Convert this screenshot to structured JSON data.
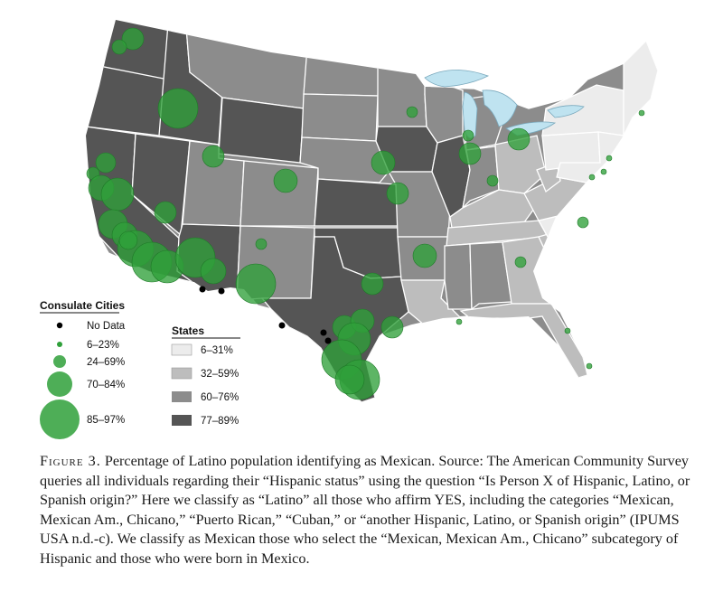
{
  "colors": {
    "water": "#bfe3f0",
    "state_6_31": "#ececec",
    "state_32_59": "#bdbdbd",
    "state_60_76": "#8c8c8c",
    "state_77_89": "#555555",
    "border": "#ffffff",
    "bubble": "#2fa03a",
    "no_data": "#000000"
  },
  "consulate_legend": {
    "title": "Consulate Cities",
    "items": [
      {
        "label": "No Data",
        "kind": "no-data"
      },
      {
        "label": "6–23%",
        "kind": "bubble-xs"
      },
      {
        "label": "24–69%",
        "kind": "bubble-s"
      },
      {
        "label": "70–84%",
        "kind": "bubble-m"
      },
      {
        "label": "85–97%",
        "kind": "bubble-l"
      }
    ]
  },
  "states_legend": {
    "title": "States",
    "items": [
      {
        "label": "6–31%",
        "key": "state_6_31"
      },
      {
        "label": "32–59%",
        "key": "state_32_59"
      },
      {
        "label": "60–76%",
        "key": "state_60_76"
      },
      {
        "label": "77–89%",
        "key": "state_77_89"
      }
    ]
  },
  "caption": {
    "label": "Figure 3.",
    "text": "Percentage of Latino population identifying as Mexican. Source: The American Community Survey queries all individuals regarding their “Hispanic status” using the question “Is Person X of Hispanic, Latino, or Spanish origin?” Here we classify as “Latino” all those who affirm YES, including the categories “Mexican, Mexican Am., Chicano,” “Puerto Rican,” “Cuban,” or “another Hispanic, Latino, or Spanish origin” (IPUMS USA n.d.-c). We classify as Mexican those who select the “Mexican, Mexican Am., Chicano” subcategory of Hispanic and those who were born in Mexico."
  }
}
